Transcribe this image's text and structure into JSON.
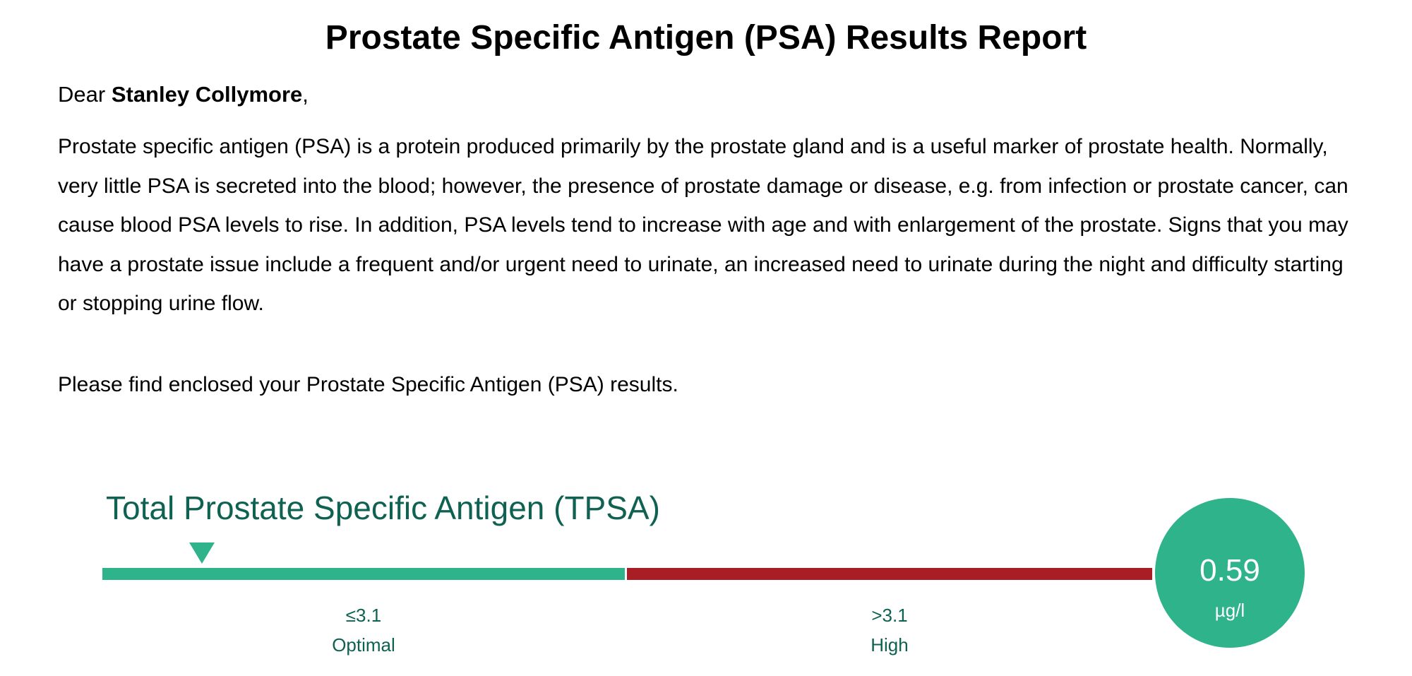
{
  "report": {
    "title": "Prostate Specific Antigen (PSA) Results Report",
    "greeting_prefix": "Dear ",
    "patient_name": "Stanley Collymore",
    "greeting_suffix": ",",
    "intro_paragraph": "Prostate specific antigen (PSA) is a protein produced primarily by the prostate gland and is a useful marker of prostate health. Normally, very little PSA is secreted into the blood; however, the presence of prostate damage or disease, e.g. from infection or prostate cancer, can cause blood PSA levels to rise. In addition, PSA levels tend to increase with age and with enlargement of the prostate. Signs that you may have a prostate issue include a frequent and/or urgent need to urinate, an increased need to urinate during the night and difficulty starting or stopping urine flow.",
    "enclosed_text": "Please find enclosed your Prostate Specific Antigen (PSA) results."
  },
  "test": {
    "name": "Total Prostate Specific Antigen (TPSA)",
    "value": "0.59",
    "unit": "µg/l",
    "marker_position_fraction": 0.095,
    "ranges": [
      {
        "threshold": "≤3.1",
        "label": "Optimal",
        "color": "#2fb38a"
      },
      {
        "threshold": ">3.1",
        "label": "High",
        "color": "#a81e24"
      }
    ],
    "accent_color": "#2fb38a",
    "text_color": "#0f6251"
  }
}
